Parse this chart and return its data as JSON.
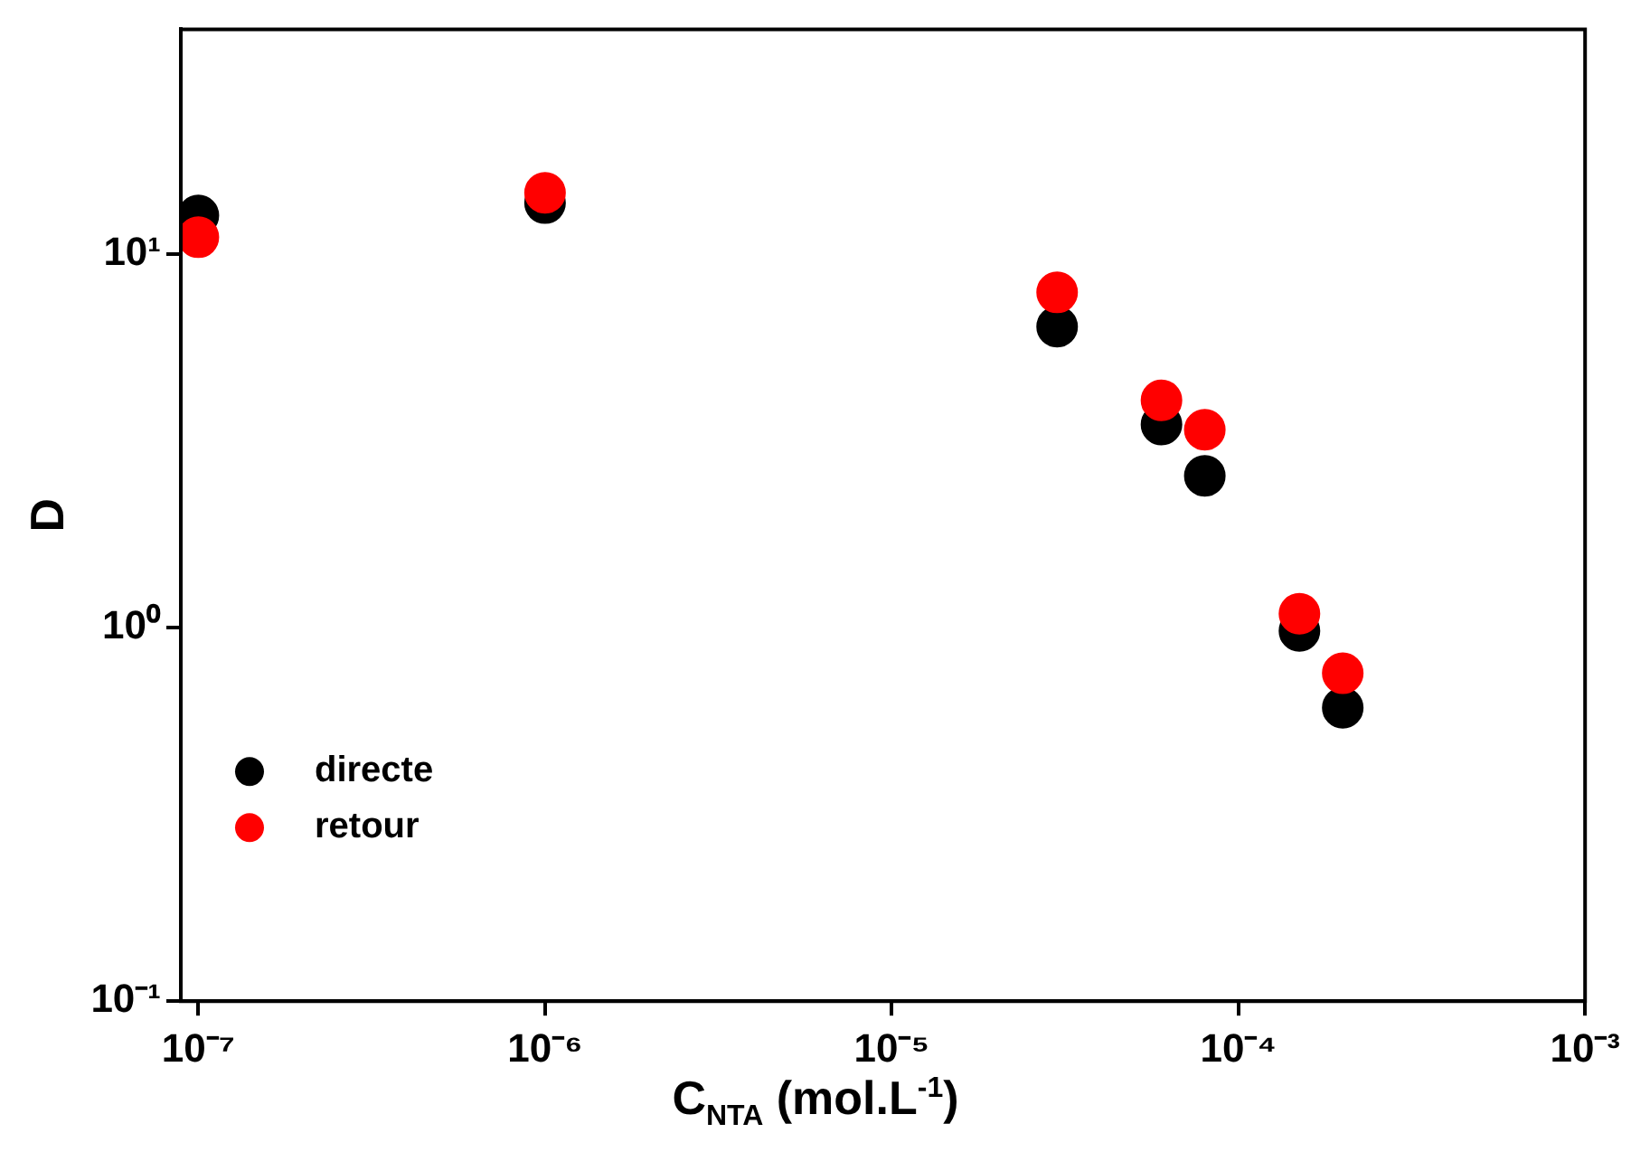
{
  "chart_data": {
    "type": "scatter",
    "xlabel": "C$_{NTA}$ (mol.L$^{-1}$)",
    "ylabel": "D",
    "series": [
      {
        "name": "directe",
        "color": "#000000",
        "x": [
          1e-07,
          1e-06,
          3e-05,
          6e-05,
          8e-05,
          0.00015,
          0.0002
        ],
        "values": [
          12.7,
          13.7,
          6.4,
          3.5,
          2.55,
          0.98,
          0.61
        ]
      },
      {
        "name": "retour",
        "color": "#ff0000",
        "x": [
          1e-07,
          1e-06,
          3e-05,
          6e-05,
          8e-05,
          0.00015,
          0.0002
        ],
        "values": [
          11.1,
          14.6,
          7.9,
          4.06,
          3.39,
          1.09,
          0.755
        ]
      }
    ],
    "log": "xy",
    "marker": "circle",
    "legend": "bottom left",
    "grid": false,
    "xlim": [
      8.9e-08,
      0.001
    ],
    "ylim": [
      0.1,
      40
    ],
    "xticks": [
      {
        "value": 1e-07,
        "label": "10⁻⁷"
      },
      {
        "value": 1e-06,
        "label": "10⁻⁶"
      },
      {
        "value": 1e-05,
        "label": "10⁻⁵"
      },
      {
        "value": 0.0001,
        "label": "10⁻⁴"
      },
      {
        "value": 0.001,
        "label": "10⁻³"
      }
    ],
    "yticks": [
      {
        "value": 0.1,
        "label": "10⁻¹"
      },
      {
        "value": 1,
        "label": "10⁰"
      },
      {
        "value": 10,
        "label": "10¹"
      }
    ]
  }
}
